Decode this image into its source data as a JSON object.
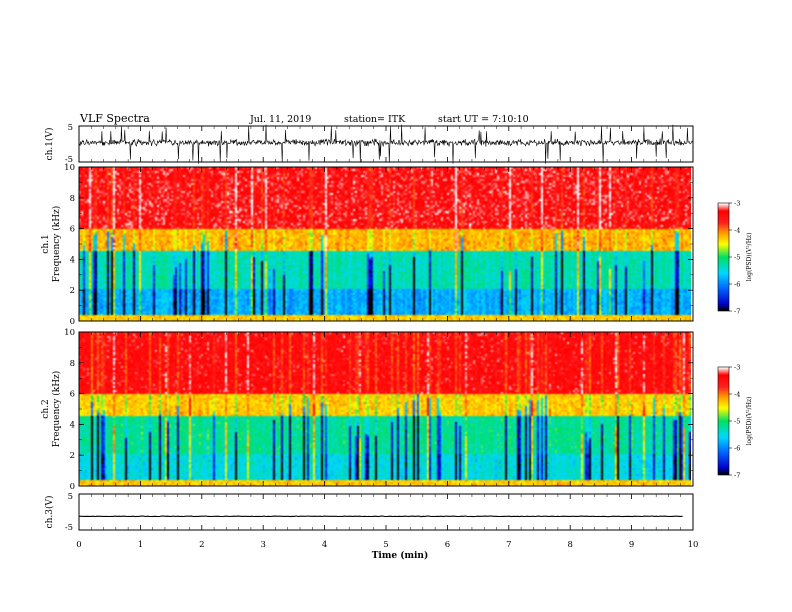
{
  "header": {
    "title": "VLF Spectra",
    "date": "Jul. 11, 2019",
    "station": "station= ITK",
    "start": "start UT = 7:10:10"
  },
  "chart_data": [
    {
      "type": "line",
      "panel": "ch1-waveform",
      "ylabel": "ch.1(V)",
      "ylim": [
        -5,
        5
      ],
      "yticks": [
        "5",
        "-5"
      ],
      "xlim": [
        0,
        10
      ],
      "baseline_v": 0.4,
      "noise_amplitude_v": 1.3,
      "spike_min_v": -5.5,
      "spike_max_v": 5.5,
      "color": "#000000"
    },
    {
      "type": "heatmap",
      "panel": "ch1-spectrogram",
      "ylabel": "ch.1\nFrequency (kHz)",
      "ylabel_line1": "ch.1",
      "ylabel_line2": "Frequency (kHz)",
      "ylim": [
        0,
        10
      ],
      "yticks": [
        "0",
        "2",
        "4",
        "6",
        "8",
        "10"
      ],
      "xlim": [
        0,
        9.83
      ],
      "colorbar": {
        "range": [
          -7,
          -3
        ],
        "ticks": [
          "-3",
          "-4",
          "-5",
          "-6",
          "-7"
        ],
        "label": "log(PSD)(V²/Hz)"
      },
      "typical_log_psd": {
        "0-2kHz": -5.8,
        "2-4.5kHz": -5.3,
        "5-6kHz": -4.2,
        "7-10kHz": -3.3
      }
    },
    {
      "type": "heatmap",
      "panel": "ch2-spectrogram",
      "ylabel": "ch.2\nFrequency (kHz)",
      "ylabel_line1": "ch.2",
      "ylabel_line2": "Frequency (kHz)",
      "ylim": [
        0,
        10
      ],
      "yticks": [
        "0",
        "2",
        "4",
        "6",
        "8",
        "10"
      ],
      "xlim": [
        0,
        9.83
      ],
      "colorbar": {
        "range": [
          -7,
          -3
        ],
        "ticks": [
          "-3",
          "-4",
          "-5",
          "-6",
          "-7"
        ],
        "label": "log(PSD)(V²/Hz)"
      },
      "typical_log_psd": {
        "0-2kHz": -5.5,
        "2-4.5kHz": -5.2,
        "5-6kHz": -4.3,
        "7-10kHz": -3.4
      }
    },
    {
      "type": "line",
      "panel": "ch3-waveform",
      "ylabel": "ch.3(V)",
      "ylim": [
        -5,
        5
      ],
      "yticks": [
        "5",
        "-5"
      ],
      "xlim": [
        0,
        9.83
      ],
      "baseline_v": -1.2,
      "color": "#000000"
    }
  ],
  "xaxis": {
    "label": "Time (min)",
    "range": [
      0,
      10
    ],
    "ticks": [
      "0",
      "1",
      "2",
      "3",
      "4",
      "5",
      "6",
      "7",
      "8",
      "9",
      "10"
    ]
  },
  "colors": {
    "colormap": [
      "#000000",
      "#0000c8",
      "#0060ff",
      "#00d8ff",
      "#00e060",
      "#ffff00",
      "#ffa000",
      "#ff2020",
      "#ff0000",
      "#ffffff"
    ]
  }
}
